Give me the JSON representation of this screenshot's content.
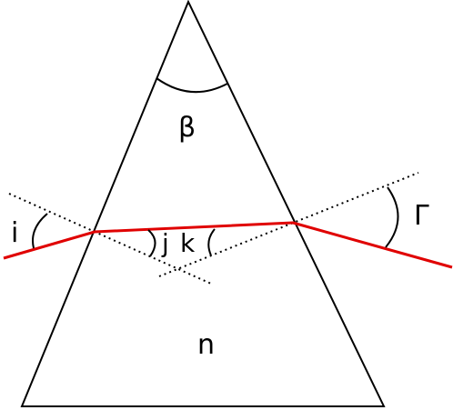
{
  "labels": {
    "apex_angle": "β",
    "refractive_index": "n",
    "incidence_angle": "i",
    "refraction_angle_in": "j",
    "refraction_angle_out": "k",
    "deviation_angle": "Γ"
  },
  "colors": {
    "prism": "#000000",
    "ray": "#e00000",
    "normals": "#000000",
    "background": "#ffffff"
  }
}
